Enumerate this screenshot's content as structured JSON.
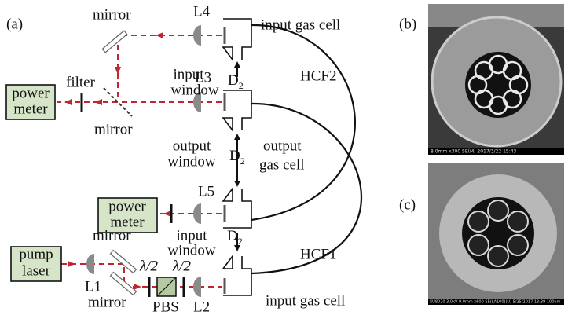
{
  "panel_a": {
    "label": "(a)",
    "mirror_top": "mirror",
    "l4": "L4",
    "input_gas_cell_top": "input gas cell",
    "input_window_top": [
      "input",
      "window"
    ],
    "l3": "L3",
    "hcf2": "HCF2",
    "power_meter_1": [
      "power",
      "meter"
    ],
    "filter": "filter",
    "mirror_mid": "mirror",
    "output_window": [
      "output",
      "window"
    ],
    "output_gas_cell": [
      "output",
      "gas cell"
    ],
    "l5": "L5",
    "power_meter_2": [
      "power",
      "meter"
    ],
    "input_window_bottom": [
      "input",
      "window"
    ],
    "mirror_upper_pump": "mirror",
    "hcf1": "HCF1",
    "pump_laser": [
      "pump",
      "laser"
    ],
    "l1": "L1",
    "half_wave_1": "λ/2",
    "half_wave_2": "λ/2",
    "mirror_lower_pump": "mirror",
    "pbs": "PBS",
    "l2": "L2",
    "input_gas_cell_bottom": "input gas cell",
    "d2_labels": [
      [
        "D",
        "2"
      ],
      [
        "D",
        "2"
      ],
      [
        "D",
        "2"
      ]
    ]
  },
  "panel_b": {
    "label": "(b)",
    "caption": "8.0mm x300 SE(M) 2017/3/22 15:43"
  },
  "panel_c": {
    "label": "(c)",
    "caption": "SU8020 3.0kV 9.0mm x600 SE(LA100)(U) 5/25/2017 13:39  100um"
  }
}
